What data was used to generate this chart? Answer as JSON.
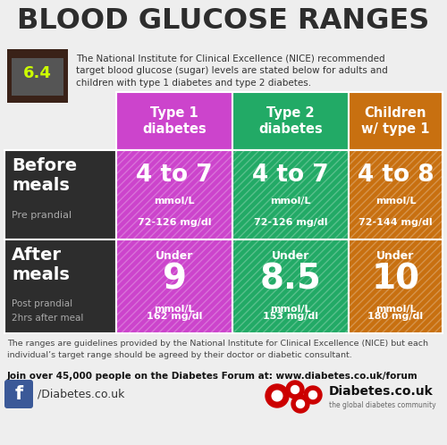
{
  "title": "BLOOD GLUCOSE RANGES",
  "title_color": "#2d2d2d",
  "bg_color": "#eeeeee",
  "intro_text": "The National Institute for Clinical Excellence (NICE) recommended\ntarget blood glucose (sugar) levels are stated below for adults and\nchildren with type 1 diabetes and type 2 diabetes.",
  "col_headers": [
    "Type 1\ndiabetes",
    "Type 2\ndiabetes",
    "Children\nw/ type 1"
  ],
  "col_colors": [
    "#cc44cc",
    "#22aa66",
    "#c87010"
  ],
  "row_headers": [
    {
      "main": "Before\nmeals",
      "sub": "Pre prandial"
    },
    {
      "main": "After\nmeals",
      "sub": "Post prandial\n2hrs after meal"
    }
  ],
  "row_header_color": "#2d2d2d",
  "cell_data": [
    [
      {
        "main": "4 to 7",
        "unit": "mmol/L",
        "sub": "72-126 mg/dl"
      },
      {
        "main": "4 to 7",
        "unit": "mmol/L",
        "sub": "72-126 mg/dl"
      },
      {
        "main": "4 to 8",
        "unit": "mmol/L",
        "sub": "72-144 mg/dl"
      }
    ],
    [
      {
        "main": "9",
        "unit": "mmol/L",
        "sub": "162 mg/dl",
        "prefix": "Under"
      },
      {
        "main": "8.5",
        "unit": "mmol/L",
        "sub": "153 mg/dl",
        "prefix": "Under"
      },
      {
        "main": "10",
        "unit": "mmol/L",
        "sub": "180 mg/dl",
        "prefix": "Under"
      }
    ]
  ],
  "footer_text": "The ranges are guidelines provided by the National Institute for Clinical Excellence (NICE) but each\nindividual’s target range should be agreed by their doctor or diabetic consultant.",
  "cta_text": "Join over 45,000 people on the Diabetes Forum at: www.diabetes.co.uk/forum",
  "fb_text": "/Diabetes.co.uk",
  "logo_text": "Diabetes.co.uk",
  "logo_sub": "the global diabetes community"
}
